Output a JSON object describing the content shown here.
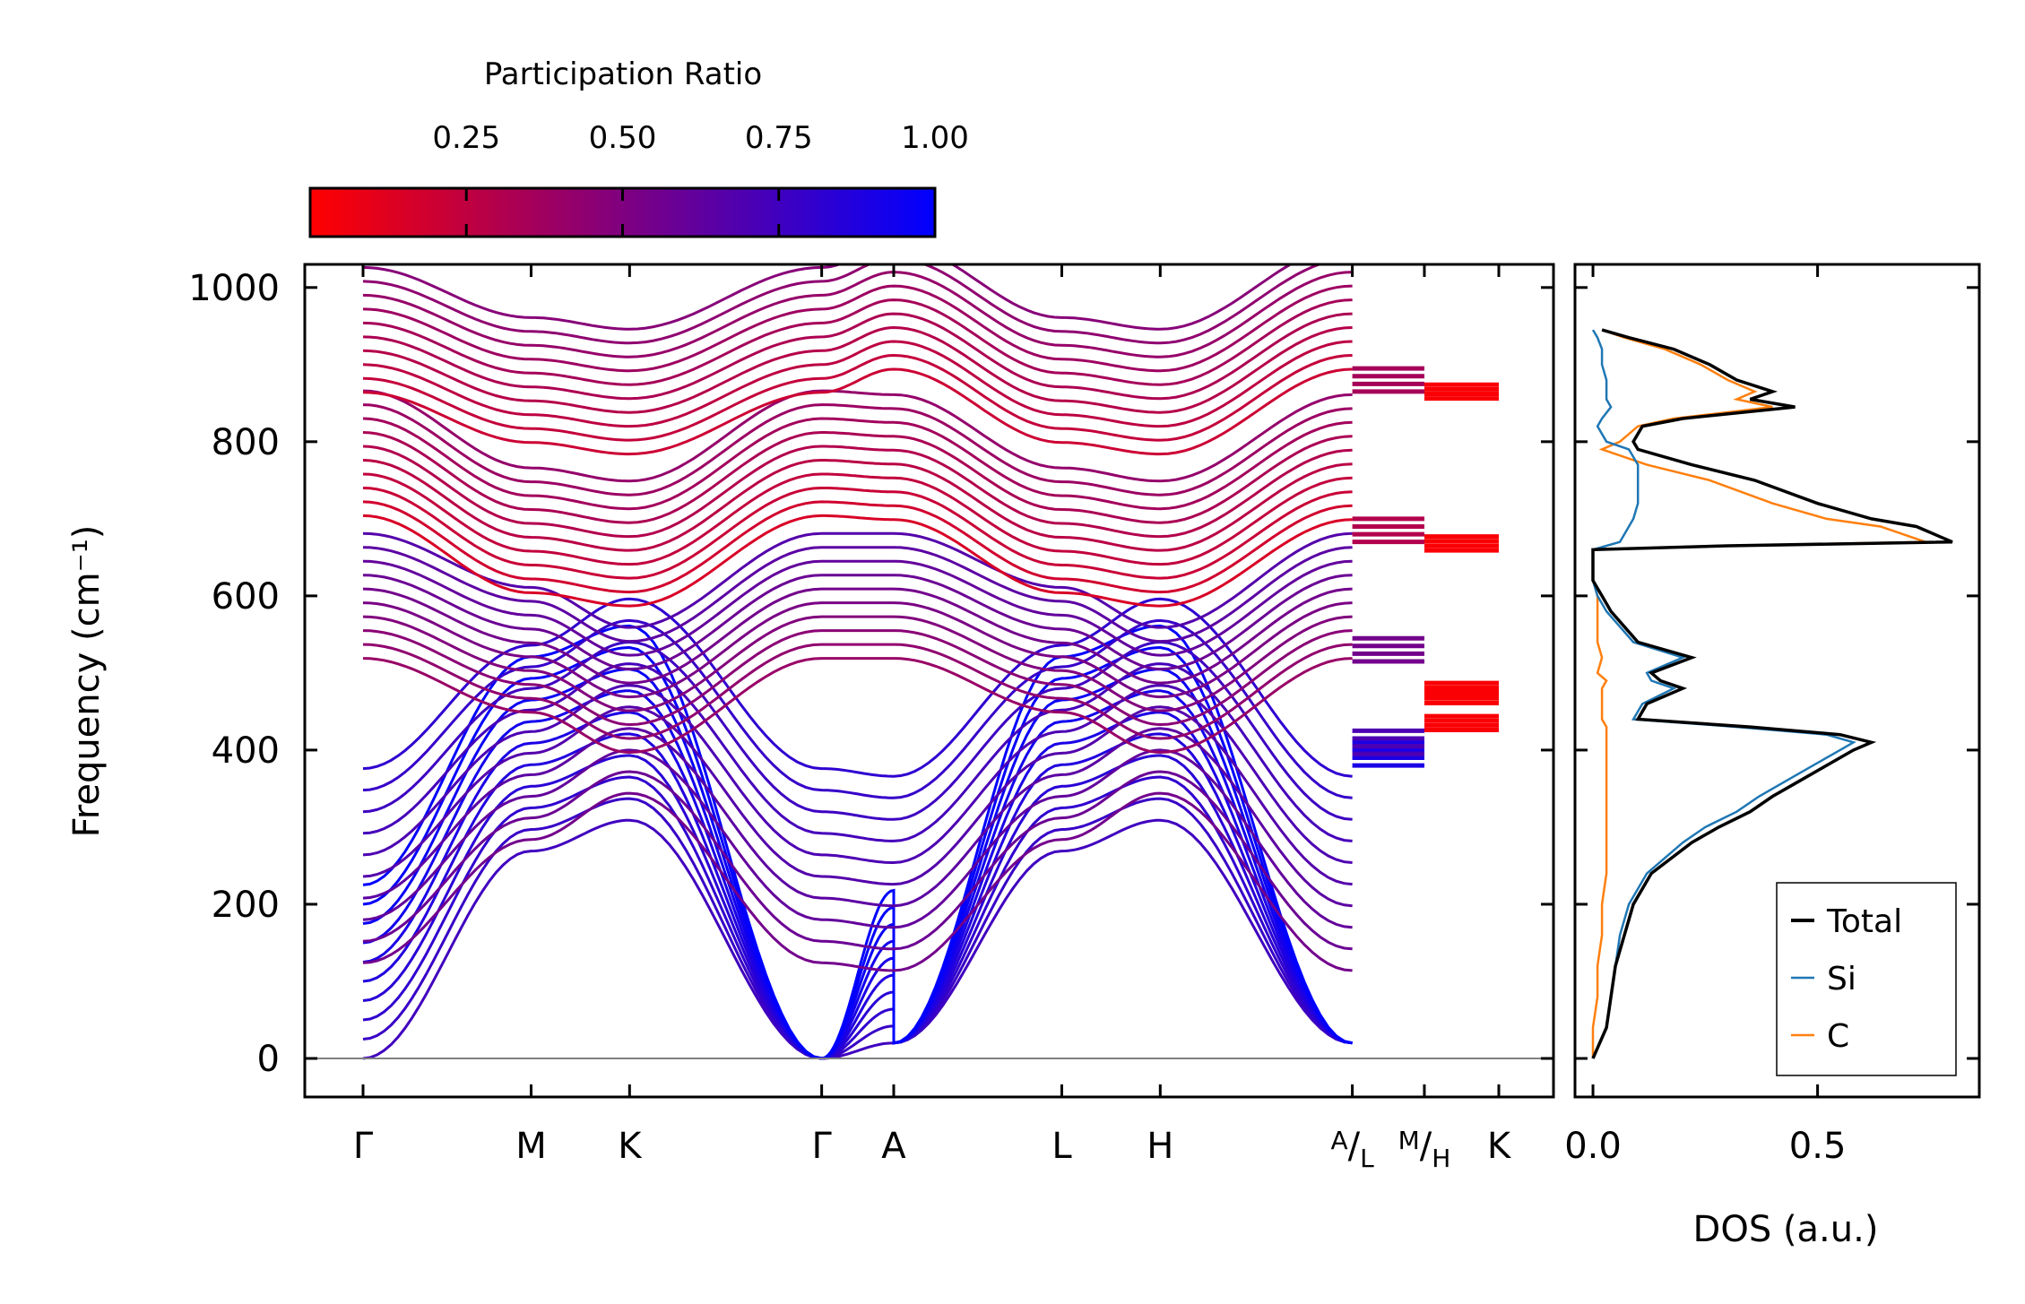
{
  "chart_data": [
    {
      "type": "line",
      "name": "phonon-band-structure",
      "ylabel": "Frequency (cm⁻¹)",
      "ylim": [
        -50,
        1030
      ],
      "yticks": [
        0,
        200,
        400,
        600,
        800,
        1000
      ],
      "kpath_labels": [
        "Γ",
        "M",
        "K",
        "Γ",
        "A",
        "L",
        "H",
        "A/L",
        "M/H",
        "K"
      ],
      "kpath_label_parts": {
        "al": [
          "A",
          "/",
          "L"
        ],
        "mh": [
          "M",
          "/",
          "H"
        ]
      },
      "kpath_positions": [
        0,
        0.7,
        1.11,
        1.91,
        2.21,
        2.91,
        3.32,
        4.12,
        4.42,
        4.73
      ],
      "colorbar": {
        "label": "Participation Ratio",
        "ticks": [
          "0.25",
          "0.50",
          "0.75",
          "1.00"
        ],
        "tick_values": [
          0.25,
          0.5,
          0.75,
          1.0
        ],
        "range": [
          0.0,
          1.0
        ],
        "color_low": "#ff0000",
        "color_high": "#0000ff"
      },
      "branch_groups": [
        {
          "name": "acoustic",
          "gamma_top": 0,
          "m_value": 395,
          "k_value": 435,
          "a_value": 20,
          "l_value": 395,
          "h_value": 435,
          "participation": 0.9
        },
        {
          "name": "low-optical",
          "gamma_top": 250,
          "m_value": 410,
          "k_value": 470,
          "a_value": 240,
          "l_value": 410,
          "h_value": 470,
          "participation": 0.7
        },
        {
          "name": "mid-optical",
          "gamma_top": 600,
          "m_value": 530,
          "k_value": 478,
          "a_value": 600,
          "l_value": 530,
          "h_value": 478,
          "participation": 0.55
        },
        {
          "name": "optical-band-2",
          "gamma_top": 785,
          "m_value": 685,
          "k_value": 668,
          "a_value": 780,
          "l_value": 685,
          "h_value": 668,
          "participation": 0.3
        },
        {
          "name": "optical-band-3",
          "gamma_top": 945,
          "m_value": 880,
          "k_value": 865,
          "a_value": 975,
          "l_value": 880,
          "h_value": 865,
          "participation": 0.35
        }
      ],
      "reference_line": 0
    },
    {
      "type": "line",
      "name": "density-of-states",
      "xlabel": "DOS (a.u.)",
      "xlim": [
        -0.04,
        0.86
      ],
      "xticks": [
        "0.0",
        "0.5"
      ],
      "xtick_values": [
        0.0,
        0.5
      ],
      "ylim": [
        -50,
        1030
      ],
      "series": [
        {
          "name": "Total",
          "color": "#000000",
          "freq": [
            0,
            40,
            80,
            120,
            160,
            200,
            240,
            280,
            300,
            320,
            340,
            360,
            380,
            400,
            410,
            420,
            430,
            440,
            460,
            480,
            490,
            500,
            520,
            540,
            560,
            580,
            600,
            620,
            640,
            660,
            665,
            670,
            690,
            700,
            720,
            750,
            770,
            790,
            800,
            820,
            830,
            845,
            855,
            865,
            880,
            900,
            920,
            935,
            945
          ],
          "values": [
            0,
            0.03,
            0.04,
            0.05,
            0.07,
            0.09,
            0.13,
            0.22,
            0.28,
            0.35,
            0.4,
            0.46,
            0.52,
            0.58,
            0.62,
            0.55,
            0.35,
            0.1,
            0.12,
            0.2,
            0.15,
            0.13,
            0.22,
            0.1,
            0.07,
            0.04,
            0.02,
            0,
            0,
            0,
            0.3,
            0.8,
            0.72,
            0.62,
            0.5,
            0.36,
            0.22,
            0.1,
            0.09,
            0.11,
            0.2,
            0.45,
            0.35,
            0.4,
            0.32,
            0.26,
            0.18,
            0.08,
            0.02
          ]
        },
        {
          "name": "Si",
          "color": "#1f77b4",
          "freq": [
            0,
            40,
            80,
            120,
            160,
            200,
            240,
            280,
            300,
            320,
            340,
            360,
            380,
            400,
            410,
            420,
            430,
            440,
            460,
            480,
            490,
            500,
            520,
            540,
            560,
            580,
            600,
            620,
            640,
            660,
            665,
            670,
            690,
            700,
            720,
            750,
            770,
            790,
            800,
            820,
            830,
            845,
            855,
            865,
            880,
            900,
            920,
            935,
            945
          ],
          "values": [
            0,
            0.03,
            0.04,
            0.05,
            0.06,
            0.08,
            0.12,
            0.2,
            0.25,
            0.32,
            0.37,
            0.43,
            0.49,
            0.55,
            0.58,
            0.52,
            0.32,
            0.09,
            0.11,
            0.18,
            0.13,
            0.12,
            0.2,
            0.09,
            0.06,
            0.03,
            0.01,
            0,
            0,
            0,
            0.03,
            0.06,
            0.08,
            0.09,
            0.1,
            0.1,
            0.1,
            0.08,
            0.03,
            0.01,
            0.02,
            0.04,
            0.03,
            0.03,
            0.03,
            0.02,
            0.02,
            0.01,
            0
          ]
        },
        {
          "name": "C",
          "color": "#ff7f0e",
          "freq": [
            0,
            40,
            80,
            120,
            160,
            200,
            240,
            280,
            300,
            320,
            340,
            360,
            380,
            400,
            410,
            420,
            430,
            440,
            460,
            480,
            490,
            500,
            520,
            540,
            560,
            580,
            600,
            620,
            640,
            660,
            665,
            670,
            690,
            700,
            720,
            750,
            770,
            790,
            800,
            820,
            830,
            845,
            855,
            865,
            880,
            900,
            920,
            935,
            945
          ],
          "values": [
            0,
            0,
            0.01,
            0.01,
            0.02,
            0.02,
            0.03,
            0.03,
            0.03,
            0.03,
            0.03,
            0.03,
            0.03,
            0.03,
            0.03,
            0.03,
            0.03,
            0.02,
            0.02,
            0.02,
            0.03,
            0.01,
            0.02,
            0.01,
            0.01,
            0.01,
            0.01,
            0,
            0,
            0,
            0.28,
            0.74,
            0.64,
            0.52,
            0.4,
            0.26,
            0.12,
            0.02,
            0.06,
            0.1,
            0.18,
            0.4,
            0.32,
            0.36,
            0.3,
            0.24,
            0.16,
            0.07,
            0.02
          ]
        }
      ],
      "legend": {
        "position": "bottom-right",
        "entries": [
          "Total",
          "Si",
          "C"
        ]
      }
    }
  ]
}
